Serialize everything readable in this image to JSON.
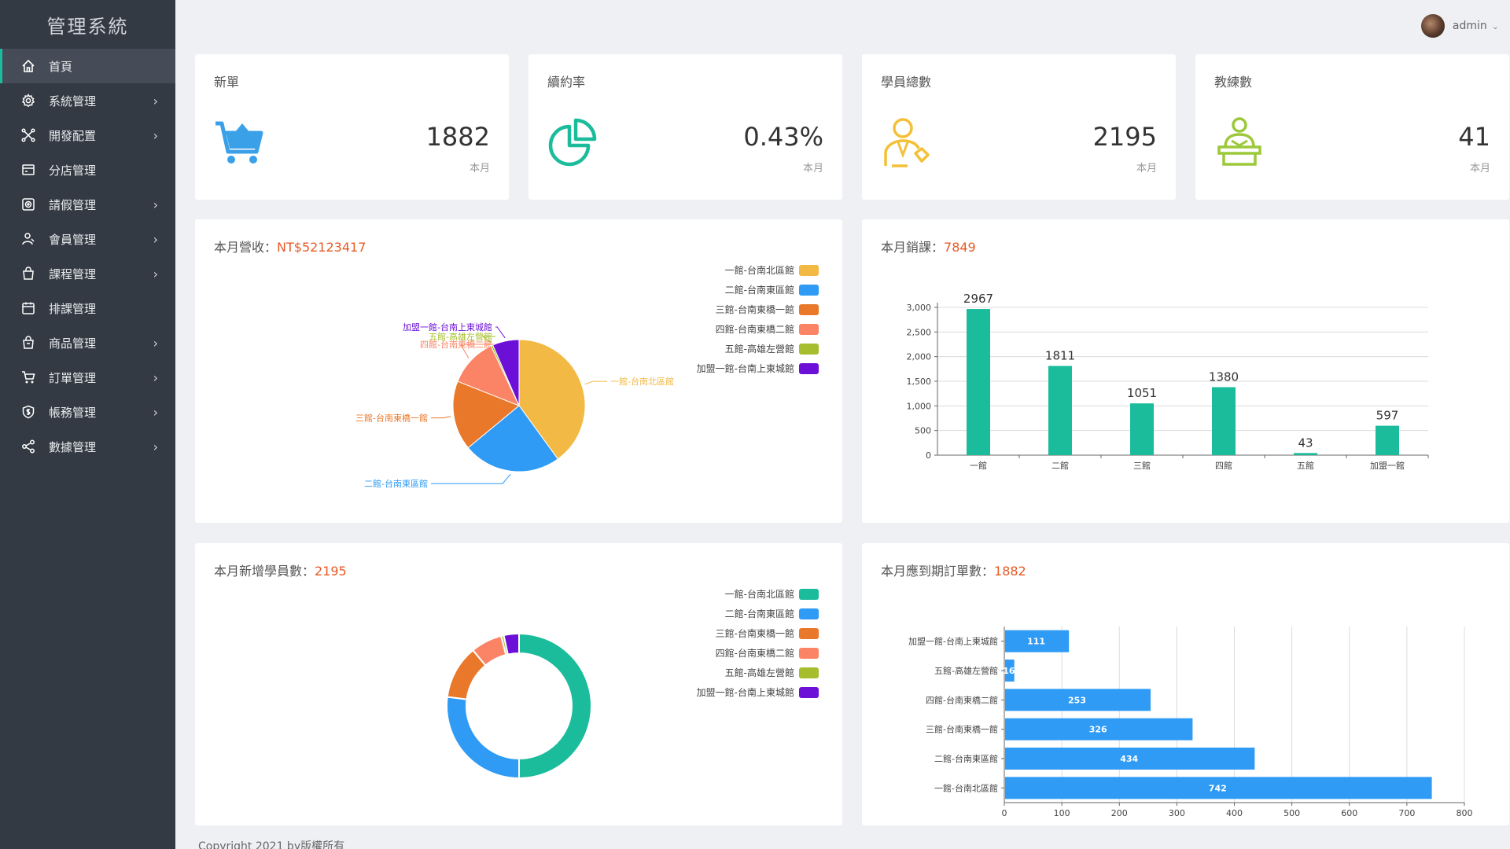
{
  "app": {
    "title": "管理系統"
  },
  "user": {
    "name": "admin",
    "caret": "⌄"
  },
  "sidebar": {
    "items": [
      {
        "label": "首頁",
        "icon": "home-icon",
        "arrow": ""
      },
      {
        "label": "系統管理",
        "icon": "gear-icon",
        "arrow": "›"
      },
      {
        "label": "開發配置",
        "icon": "network-icon",
        "arrow": "›"
      },
      {
        "label": "分店管理",
        "icon": "store-icon",
        "arrow": ""
      },
      {
        "label": "請假管理",
        "icon": "leave-icon",
        "arrow": "›"
      },
      {
        "label": "會員管理",
        "icon": "member-icon",
        "arrow": "›"
      },
      {
        "label": "課程管理",
        "icon": "course-bag-icon",
        "arrow": "›"
      },
      {
        "label": "排課管理",
        "icon": "calendar-icon",
        "arrow": ""
      },
      {
        "label": "商品管理",
        "icon": "product-bag-icon",
        "arrow": "›"
      },
      {
        "label": "訂單管理",
        "icon": "cart-icon",
        "arrow": "›"
      },
      {
        "label": "帳務管理",
        "icon": "shield-dollar-icon",
        "arrow": "›"
      },
      {
        "label": "數據管理",
        "icon": "share-icon",
        "arrow": "›"
      }
    ]
  },
  "stats": [
    {
      "title": "新單",
      "value": "1882",
      "sub": "本月",
      "icon": "cart-icon",
      "color": "#3aa0e8"
    },
    {
      "title": "續約率",
      "value": "0.43%",
      "sub": "本月",
      "icon": "pie-icon",
      "color": "#1bbc9b"
    },
    {
      "title": "學員總數",
      "value": "2195",
      "sub": "本月",
      "icon": "student-icon",
      "color": "#f4c037"
    },
    {
      "title": "教練數",
      "value": "41",
      "sub": "本月",
      "icon": "coach-icon",
      "color": "#9cc83a"
    }
  ],
  "revenue": {
    "label": "本月營收：",
    "value": "NT$52123417"
  },
  "sales": {
    "label": "本月銷課：",
    "value": "7849"
  },
  "new_students": {
    "label": "本月新增學員數：",
    "value": "2195"
  },
  "expiring": {
    "label": "本月應到期訂單數：",
    "value": "1882"
  },
  "legend": [
    {
      "label": "一館-台南北區館"
    },
    {
      "label": "二館-台南東區館"
    },
    {
      "label": "三館-台南東橋一館"
    },
    {
      "label": "四館-台南東橋二館"
    },
    {
      "label": "五館-高雄左營館"
    },
    {
      "label": "加盟一館-台南上東城館"
    }
  ],
  "colors": {
    "accent": "#1bbc9b",
    "highlight": "#e55a26",
    "pie": [
      "#f2b945",
      "#2f9bf5",
      "#e9782a",
      "#fa8465",
      "#a6be2d",
      "#6c10d8"
    ],
    "donut": [
      "#1bbc9b",
      "#2f9bf5",
      "#e9782a",
      "#fa8465",
      "#a6be2d",
      "#6c10d8"
    ],
    "bar": "#1bbc9b",
    "hbar": "#2f9bf5"
  },
  "footer": {
    "text": "Copyright 2021 by版權所有"
  },
  "chart_data": [
    {
      "type": "pie",
      "title": "本月營收：NT$52123417",
      "categories": [
        "一館-台南北區館",
        "二館-台南東區館",
        "三館-台南東橋一館",
        "四館-台南東橋二館",
        "五館-高雄左營館",
        "加盟一館-台南上東城館"
      ],
      "values": [
        40,
        24,
        17,
        12,
        0.5,
        6.5
      ],
      "legend": "top-right"
    },
    {
      "type": "bar",
      "title": "本月銷課：7849",
      "categories": [
        "一館",
        "二館",
        "三館",
        "四館",
        "五館",
        "加盟一館"
      ],
      "values": [
        2967,
        1811,
        1051,
        1380,
        43,
        597
      ],
      "ylim": [
        0,
        3000
      ],
      "yticks": [
        0,
        500,
        1000,
        1500,
        2000,
        2500,
        3000
      ],
      "ytick_labels": [
        "0",
        "500",
        "1,000",
        "1,500",
        "2,000",
        "2,500",
        "3,000"
      ],
      "grid": true
    },
    {
      "type": "pie",
      "subtype": "donut",
      "title": "本月新增學員數：2195",
      "categories": [
        "一館-台南北區館",
        "二館-台南東區館",
        "三館-台南東橋一館",
        "四館-台南東橋二館",
        "五館-高雄左營館",
        "加盟一館-台南上東城館"
      ],
      "values": [
        50,
        27,
        12,
        7,
        0.6,
        3.4
      ],
      "legend": "top-right"
    },
    {
      "type": "bar",
      "orientation": "horizontal",
      "title": "本月應到期訂單數：1882",
      "categories": [
        "加盟一館-台南上東城館",
        "五館-高雄左營館",
        "四館-台南東橋二館",
        "三館-台南東橋一館",
        "二館-台南東區館",
        "一館-台南北區館"
      ],
      "values": [
        111,
        16,
        253,
        326,
        434,
        742
      ],
      "xlim": [
        0,
        800
      ],
      "xticks": [
        0,
        100,
        200,
        300,
        400,
        500,
        600,
        700,
        800
      ],
      "grid": true
    }
  ]
}
